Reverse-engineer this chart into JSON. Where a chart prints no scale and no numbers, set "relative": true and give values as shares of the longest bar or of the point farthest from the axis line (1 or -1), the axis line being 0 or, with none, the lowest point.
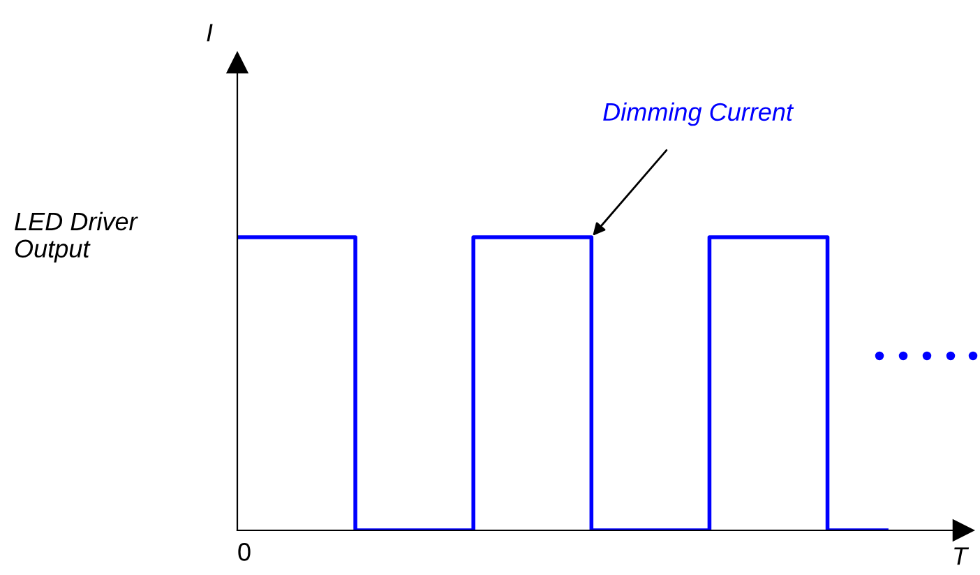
{
  "chart_data": {
    "type": "step",
    "relative": true,
    "xlabel": "T",
    "categories": [
      null,
      null,
      null,
      null,
      null,
      null,
      null,
      null,
      null,
      null,
      null,
      null
    ],
    "series": [
      {
        "color": "#0000ff",
        "values": [
          1,
          1,
          0,
          0,
          1,
          1,
          0,
          0,
          1,
          1,
          0,
          0
        ]
      }
    ],
    "annotations": [
      "I",
      "0",
      "LED Driver\nOutput",
      "Dimming Current"
    ],
    "legend": false,
    "marker": "none",
    "line_style": "solid"
  }
}
